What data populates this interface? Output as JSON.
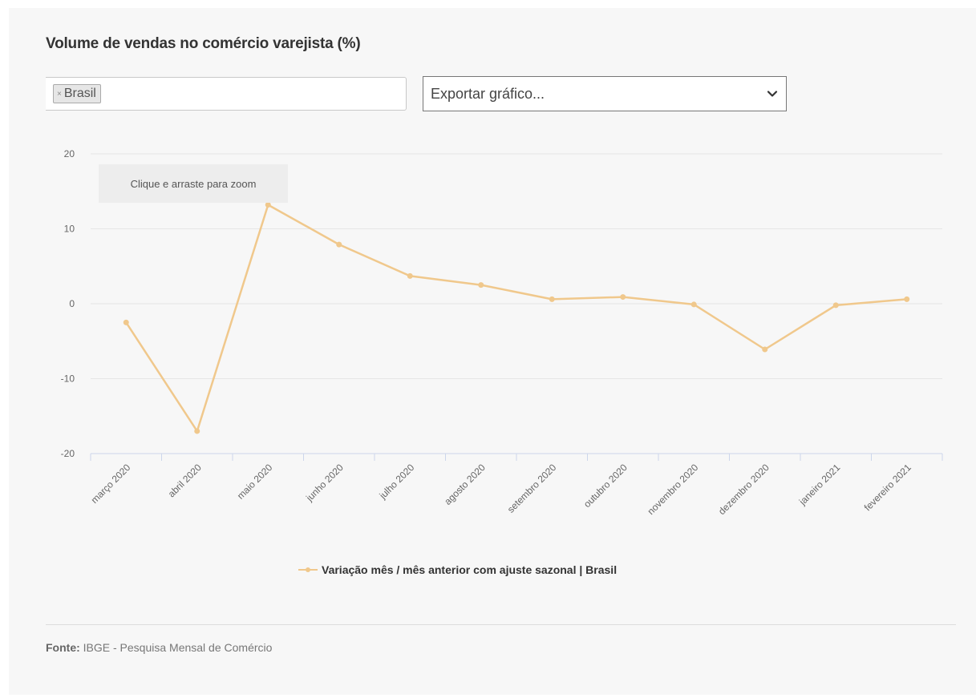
{
  "title": "Volume de vendas no comércio varejista (%)",
  "filter": {
    "chip_remove": "×",
    "chip_label": "Brasil"
  },
  "export": {
    "label": "Exportar gráfico..."
  },
  "tooltip": "Clique e arraste para zoom",
  "legend": {
    "label": "Variação mês / mês anterior com ajuste sazonal | Brasil"
  },
  "source": {
    "label": "Fonte:",
    "text": "IBGE - Pesquisa Mensal de Comércio"
  },
  "colors": {
    "series": "#f0c88c",
    "grid": "#e6e6e6",
    "axis": "#ccd6eb"
  },
  "chart_data": {
    "type": "line",
    "title": "Volume de vendas no comércio varejista (%)",
    "xlabel": "",
    "ylabel": "",
    "ylim": [
      -20,
      20
    ],
    "yticks": [
      -20,
      -10,
      0,
      10,
      20
    ],
    "grid": true,
    "legend_position": "bottom",
    "categories": [
      "março 2020",
      "abril 2020",
      "maio 2020",
      "junho 2020",
      "julho 2020",
      "agosto 2020",
      "setembro 2020",
      "outubro 2020",
      "novembro 2020",
      "dezembro 2020",
      "janeiro 2021",
      "fevereiro 2021"
    ],
    "series": [
      {
        "name": "Variação mês / mês anterior com ajuste sazonal | Brasil",
        "values": [
          -2.5,
          -17.0,
          13.2,
          7.9,
          3.7,
          2.5,
          0.6,
          0.9,
          -0.1,
          -6.1,
          -0.2,
          0.6
        ]
      }
    ]
  }
}
